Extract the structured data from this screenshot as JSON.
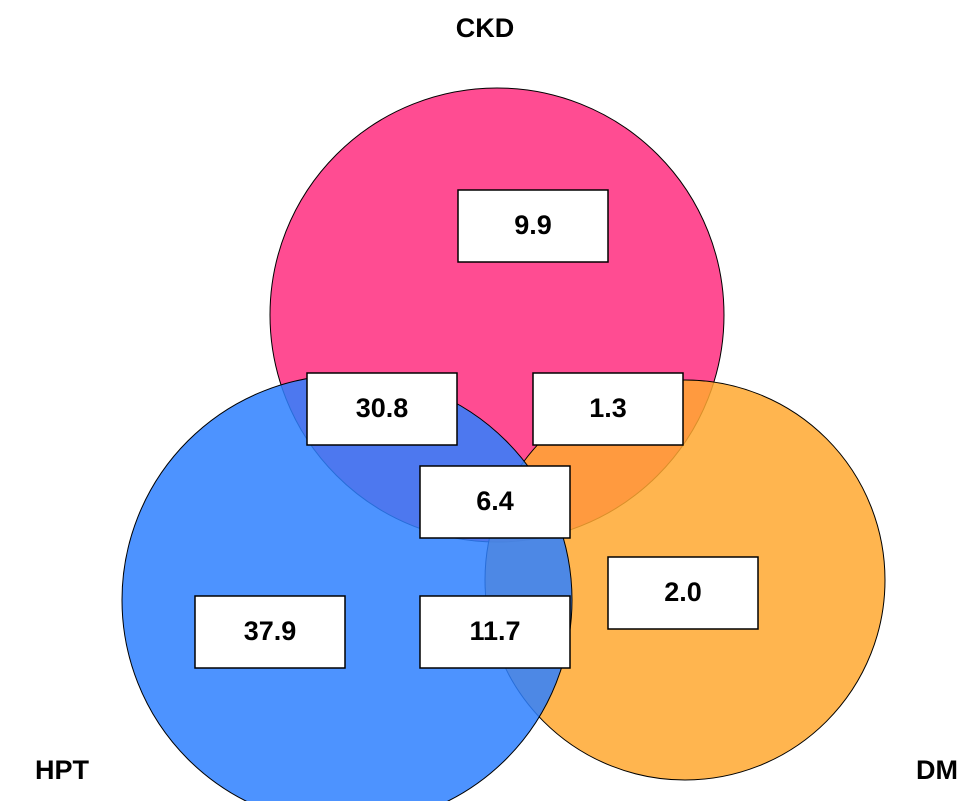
{
  "title": "CKD",
  "sets": [
    {
      "name": "CKD",
      "color": "#ff2d7f"
    },
    {
      "name": "DM",
      "color": "#ffa830"
    },
    {
      "name": "HPT",
      "color": "#2e80ff"
    }
  ],
  "regions": [
    {
      "label": "9.9"
    },
    {
      "label": "30.8"
    },
    {
      "label": "1.3"
    },
    {
      "label": "6.4"
    },
    {
      "label": "2.0"
    },
    {
      "label": "37.9"
    },
    {
      "label": "11.7"
    }
  ]
}
